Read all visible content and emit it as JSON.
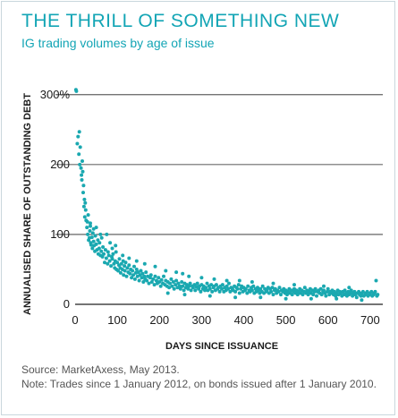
{
  "title": "THE THRILL OF SOMETHING NEW",
  "subtitle": "IG trading volumes by age of issue",
  "source": "Source: MarketAxess, May 2013.",
  "note": "Note: Trades since 1 January 2012, on bonds issued after 1 January 2010.",
  "colors": {
    "accent": "#13a5b5",
    "points": "#1aa8b0",
    "text": "#1a1a1a"
  },
  "chart_data": {
    "type": "scatter",
    "title": "THE THRILL OF SOMETHING NEW",
    "subtitle": "IG trading volumes by age of issue",
    "xlabel": "DAYS SINCE ISSUANCE",
    "ylabel": "ANNUALISED SHARE OF OUTSTANDING DEBT",
    "xlim": [
      0,
      730
    ],
    "ylim": [
      0,
      310
    ],
    "xticks": [
      0,
      100,
      200,
      300,
      400,
      500,
      600,
      700
    ],
    "yticks": [
      0,
      100,
      200,
      300
    ],
    "ytick_labels": [
      "0",
      "100",
      "200",
      "300%"
    ],
    "grid": "horizontal",
    "points": [
      [
        2,
        307
      ],
      [
        3,
        305
      ],
      [
        5,
        230
      ],
      [
        7,
        240
      ],
      [
        9,
        215
      ],
      [
        10,
        247
      ],
      [
        11,
        200
      ],
      [
        12,
        225
      ],
      [
        14,
        195
      ],
      [
        15,
        185
      ],
      [
        16,
        178
      ],
      [
        17,
        205
      ],
      [
        18,
        190
      ],
      [
        19,
        160
      ],
      [
        20,
        170
      ],
      [
        21,
        140
      ],
      [
        22,
        150
      ],
      [
        23,
        125
      ],
      [
        24,
        145
      ],
      [
        25,
        135
      ],
      [
        26,
        120
      ],
      [
        28,
        110
      ],
      [
        29,
        118
      ],
      [
        30,
        100
      ],
      [
        31,
        128
      ],
      [
        32,
        92
      ],
      [
        34,
        95
      ],
      [
        35,
        105
      ],
      [
        36,
        112
      ],
      [
        37,
        88
      ],
      [
        38,
        85
      ],
      [
        40,
        96
      ],
      [
        41,
        80
      ],
      [
        42,
        102
      ],
      [
        44,
        90
      ],
      [
        45,
        84
      ],
      [
        47,
        76
      ],
      [
        48,
        98
      ],
      [
        50,
        86
      ],
      [
        52,
        78
      ],
      [
        54,
        92
      ],
      [
        55,
        72
      ],
      [
        57,
        80
      ],
      [
        58,
        88
      ],
      [
        60,
        70
      ],
      [
        62,
        76
      ],
      [
        63,
        95
      ],
      [
        65,
        68
      ],
      [
        66,
        82
      ],
      [
        68,
        72
      ],
      [
        70,
        60
      ],
      [
        72,
        78
      ],
      [
        74,
        66
      ],
      [
        75,
        100
      ],
      [
        77,
        58
      ],
      [
        78,
        75
      ],
      [
        80,
        70
      ],
      [
        82,
        62
      ],
      [
        83,
        88
      ],
      [
        85,
        55
      ],
      [
        87,
        68
      ],
      [
        88,
        65
      ],
      [
        90,
        72
      ],
      [
        92,
        58
      ],
      [
        94,
        52
      ],
      [
        95,
        62
      ],
      [
        97,
        75
      ],
      [
        98,
        50
      ],
      [
        100,
        60
      ],
      [
        102,
        48
      ],
      [
        104,
        56
      ],
      [
        105,
        65
      ],
      [
        107,
        52
      ],
      [
        108,
        45
      ],
      [
        110,
        58
      ],
      [
        112,
        50
      ],
      [
        114,
        62
      ],
      [
        115,
        42
      ],
      [
        117,
        55
      ],
      [
        118,
        48
      ],
      [
        120,
        60
      ],
      [
        122,
        40
      ],
      [
        124,
        52
      ],
      [
        126,
        46
      ],
      [
        128,
        56
      ],
      [
        130,
        44
      ],
      [
        132,
        50
      ],
      [
        134,
        38
      ],
      [
        136,
        48
      ],
      [
        138,
        42
      ],
      [
        140,
        54
      ],
      [
        142,
        36
      ],
      [
        144,
        45
      ],
      [
        146,
        50
      ],
      [
        148,
        40
      ],
      [
        150,
        46
      ],
      [
        152,
        34
      ],
      [
        154,
        42
      ],
      [
        156,
        48
      ],
      [
        158,
        38
      ],
      [
        160,
        44
      ],
      [
        162,
        32
      ],
      [
        164,
        40
      ],
      [
        166,
        36
      ],
      [
        168,
        46
      ],
      [
        170,
        34
      ],
      [
        172,
        40
      ],
      [
        175,
        30
      ],
      [
        178,
        38
      ],
      [
        180,
        42
      ],
      [
        182,
        32
      ],
      [
        185,
        36
      ],
      [
        188,
        28
      ],
      [
        190,
        40
      ],
      [
        193,
        34
      ],
      [
        195,
        30
      ],
      [
        198,
        38
      ],
      [
        200,
        32
      ],
      [
        203,
        26
      ],
      [
        205,
        35
      ],
      [
        208,
        30
      ],
      [
        210,
        40
      ],
      [
        213,
        28
      ],
      [
        215,
        34
      ],
      [
        218,
        26
      ],
      [
        220,
        32
      ],
      [
        223,
        24
      ],
      [
        225,
        30
      ],
      [
        228,
        36
      ],
      [
        230,
        26
      ],
      [
        233,
        32
      ],
      [
        235,
        22
      ],
      [
        238,
        28
      ],
      [
        240,
        34
      ],
      [
        243,
        24
      ],
      [
        245,
        30
      ],
      [
        248,
        26
      ],
      [
        250,
        22
      ],
      [
        253,
        32
      ],
      [
        255,
        26
      ],
      [
        258,
        20
      ],
      [
        260,
        30
      ],
      [
        263,
        24
      ],
      [
        265,
        28
      ],
      [
        268,
        22
      ],
      [
        270,
        26
      ],
      [
        273,
        30
      ],
      [
        275,
        20
      ],
      [
        278,
        26
      ],
      [
        280,
        24
      ],
      [
        283,
        28
      ],
      [
        285,
        20
      ],
      [
        288,
        25
      ],
      [
        290,
        30
      ],
      [
        293,
        22
      ],
      [
        295,
        26
      ],
      [
        298,
        18
      ],
      [
        300,
        28
      ],
      [
        303,
        22
      ],
      [
        305,
        26
      ],
      [
        308,
        20
      ],
      [
        310,
        24
      ],
      [
        313,
        30
      ],
      [
        315,
        20
      ],
      [
        318,
        26
      ],
      [
        320,
        22
      ],
      [
        323,
        28
      ],
      [
        325,
        18
      ],
      [
        328,
        24
      ],
      [
        330,
        26
      ],
      [
        333,
        20
      ],
      [
        335,
        28
      ],
      [
        338,
        22
      ],
      [
        340,
        24
      ],
      [
        343,
        18
      ],
      [
        345,
        26
      ],
      [
        348,
        22
      ],
      [
        350,
        28
      ],
      [
        353,
        18
      ],
      [
        355,
        24
      ],
      [
        358,
        20
      ],
      [
        360,
        26
      ],
      [
        363,
        22
      ],
      [
        365,
        30
      ],
      [
        368,
        18
      ],
      [
        370,
        24
      ],
      [
        373,
        22
      ],
      [
        375,
        20
      ],
      [
        378,
        26
      ],
      [
        380,
        18
      ],
      [
        383,
        24
      ],
      [
        385,
        22
      ],
      [
        388,
        28
      ],
      [
        390,
        16
      ],
      [
        393,
        22
      ],
      [
        395,
        26
      ],
      [
        398,
        18
      ],
      [
        400,
        24
      ],
      [
        403,
        20
      ],
      [
        405,
        22
      ],
      [
        408,
        16
      ],
      [
        410,
        26
      ],
      [
        413,
        20
      ],
      [
        415,
        18
      ],
      [
        418,
        24
      ],
      [
        420,
        20
      ],
      [
        423,
        26
      ],
      [
        425,
        16
      ],
      [
        428,
        22
      ],
      [
        430,
        18
      ],
      [
        433,
        24
      ],
      [
        435,
        20
      ],
      [
        438,
        16
      ],
      [
        440,
        22
      ],
      [
        443,
        18
      ],
      [
        445,
        26
      ],
      [
        448,
        16
      ],
      [
        450,
        22
      ],
      [
        453,
        18
      ],
      [
        455,
        20
      ],
      [
        458,
        24
      ],
      [
        460,
        16
      ],
      [
        463,
        22
      ],
      [
        465,
        18
      ],
      [
        468,
        24
      ],
      [
        470,
        14
      ],
      [
        473,
        20
      ],
      [
        475,
        22
      ],
      [
        478,
        16
      ],
      [
        480,
        20
      ],
      [
        483,
        18
      ],
      [
        485,
        24
      ],
      [
        488,
        14
      ],
      [
        490,
        20
      ],
      [
        493,
        18
      ],
      [
        495,
        22
      ],
      [
        498,
        16
      ],
      [
        500,
        20
      ],
      [
        503,
        14
      ],
      [
        505,
        18
      ],
      [
        508,
        22
      ],
      [
        510,
        16
      ],
      [
        513,
        20
      ],
      [
        515,
        14
      ],
      [
        518,
        18
      ],
      [
        520,
        22
      ],
      [
        523,
        16
      ],
      [
        525,
        20
      ],
      [
        528,
        14
      ],
      [
        530,
        18
      ],
      [
        533,
        22
      ],
      [
        535,
        16
      ],
      [
        538,
        20
      ],
      [
        540,
        14
      ],
      [
        543,
        18
      ],
      [
        545,
        24
      ],
      [
        548,
        16
      ],
      [
        550,
        20
      ],
      [
        553,
        14
      ],
      [
        555,
        18
      ],
      [
        558,
        22
      ],
      [
        560,
        16
      ],
      [
        563,
        20
      ],
      [
        565,
        14
      ],
      [
        568,
        18
      ],
      [
        570,
        22
      ],
      [
        573,
        12
      ],
      [
        575,
        18
      ],
      [
        578,
        20
      ],
      [
        580,
        16
      ],
      [
        583,
        22
      ],
      [
        585,
        14
      ],
      [
        588,
        18
      ],
      [
        590,
        20
      ],
      [
        593,
        16
      ],
      [
        595,
        12
      ],
      [
        598,
        18
      ],
      [
        600,
        22
      ],
      [
        603,
        14
      ],
      [
        605,
        18
      ],
      [
        608,
        16
      ],
      [
        610,
        20
      ],
      [
        613,
        14
      ],
      [
        615,
        18
      ],
      [
        618,
        12
      ],
      [
        620,
        16
      ],
      [
        623,
        20
      ],
      [
        625,
        14
      ],
      [
        628,
        18
      ],
      [
        630,
        16
      ],
      [
        633,
        12
      ],
      [
        635,
        18
      ],
      [
        638,
        14
      ],
      [
        640,
        20
      ],
      [
        643,
        16
      ],
      [
        645,
        12
      ],
      [
        648,
        18
      ],
      [
        650,
        14
      ],
      [
        653,
        16
      ],
      [
        655,
        20
      ],
      [
        658,
        12
      ],
      [
        660,
        16
      ],
      [
        663,
        18
      ],
      [
        665,
        14
      ],
      [
        668,
        10
      ],
      [
        670,
        16
      ],
      [
        673,
        18
      ],
      [
        675,
        14
      ],
      [
        678,
        12
      ],
      [
        680,
        16
      ],
      [
        683,
        18
      ],
      [
        685,
        12
      ],
      [
        688,
        14
      ],
      [
        690,
        16
      ],
      [
        693,
        18
      ],
      [
        695,
        12
      ],
      [
        698,
        14
      ],
      [
        700,
        16
      ],
      [
        703,
        18
      ],
      [
        705,
        12
      ],
      [
        708,
        14
      ],
      [
        710,
        16
      ],
      [
        712,
        18
      ],
      [
        714,
        34
      ],
      [
        716,
        12
      ],
      [
        718,
        14
      ],
      [
        88,
        80
      ],
      [
        96,
        84
      ],
      [
        113,
        70
      ],
      [
        128,
        66
      ],
      [
        146,
        62
      ],
      [
        165,
        58
      ],
      [
        190,
        54
      ],
      [
        215,
        48
      ],
      [
        240,
        46
      ],
      [
        255,
        44
      ],
      [
        270,
        40
      ],
      [
        300,
        38
      ],
      [
        330,
        36
      ],
      [
        360,
        34
      ],
      [
        390,
        34
      ],
      [
        420,
        32
      ],
      [
        470,
        30
      ],
      [
        520,
        28
      ],
      [
        590,
        26
      ],
      [
        650,
        24
      ],
      [
        220,
        16
      ],
      [
        260,
        14
      ],
      [
        320,
        12
      ],
      [
        380,
        10
      ],
      [
        440,
        10
      ],
      [
        500,
        8
      ],
      [
        560,
        8
      ],
      [
        620,
        8
      ],
      [
        680,
        6
      ],
      [
        50,
        110
      ],
      [
        60,
        100
      ],
      [
        44,
        108
      ],
      [
        36,
        116
      ]
    ]
  }
}
